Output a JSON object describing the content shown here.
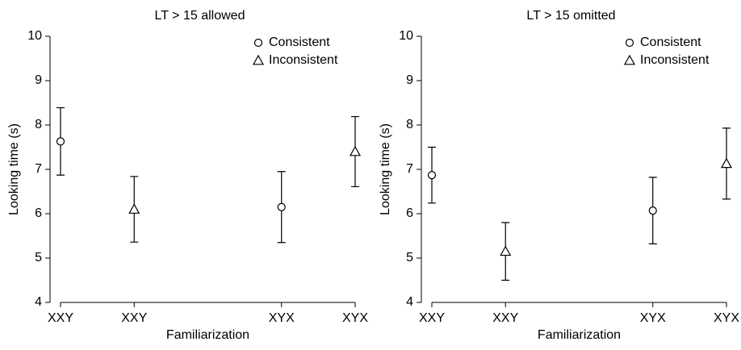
{
  "chart_data": [
    {
      "type": "errorbar",
      "title": "LT > 15 allowed",
      "xlabel": "Familiarization",
      "ylabel": "Looking time (s)",
      "x": [
        1,
        2,
        4,
        5
      ],
      "xlim": [
        1,
        5
      ],
      "xticks": [
        {
          "value": 1,
          "label": "XXY"
        },
        {
          "value": 2,
          "label": "XXY"
        },
        {
          "value": 4,
          "label": "XYX"
        },
        {
          "value": 5,
          "label": "XYX"
        }
      ],
      "ylim": [
        4,
        10
      ],
      "yticks": [
        4,
        5,
        6,
        7,
        8,
        9,
        10
      ],
      "legend": "upper right",
      "series": [
        {
          "name": "Consistent",
          "marker": "circle",
          "color": "#000000",
          "values": [
            7.63,
            null,
            6.15,
            null
          ],
          "errors": [
            0.76,
            null,
            0.8,
            null
          ]
        },
        {
          "name": "Inconsistent",
          "marker": "triangle",
          "color": "#000000",
          "values": [
            null,
            6.1,
            null,
            7.4
          ],
          "errors": [
            null,
            0.74,
            null,
            0.79
          ]
        }
      ]
    },
    {
      "type": "errorbar",
      "title": "LT > 15 omitted",
      "xlabel": "Familiarization",
      "ylabel": "Looking time (s)",
      "x": [
        1,
        2,
        4,
        5
      ],
      "xlim": [
        1,
        5
      ],
      "xticks": [
        {
          "value": 1,
          "label": "XXY"
        },
        {
          "value": 2,
          "label": "XXY"
        },
        {
          "value": 4,
          "label": "XYX"
        },
        {
          "value": 5,
          "label": "XYX"
        }
      ],
      "ylim": [
        4,
        10
      ],
      "yticks": [
        4,
        5,
        6,
        7,
        8,
        9,
        10
      ],
      "legend": "upper right",
      "series": [
        {
          "name": "Consistent",
          "marker": "circle",
          "color": "#000000",
          "values": [
            6.87,
            null,
            6.07,
            null
          ],
          "errors": [
            0.63,
            null,
            0.75,
            null
          ]
        },
        {
          "name": "Inconsistent",
          "marker": "triangle",
          "color": "#000000",
          "values": [
            null,
            5.15,
            null,
            7.13
          ],
          "errors": [
            null,
            0.65,
            null,
            0.8
          ]
        }
      ]
    }
  ]
}
